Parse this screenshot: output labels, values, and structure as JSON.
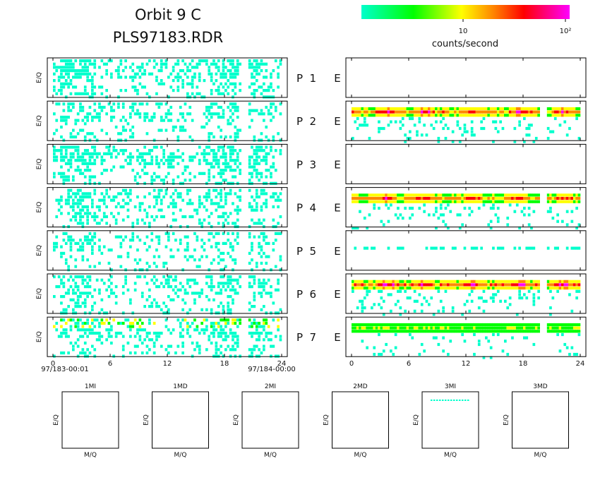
{
  "header": {
    "title_line1": "Orbit  9  C",
    "title_line2": "PLS97183.RDR"
  },
  "colorbar": {
    "label": "counts/second",
    "tick_labels": [
      "10",
      "10²"
    ],
    "tick_values": [
      10,
      100
    ],
    "range": [
      1,
      120
    ],
    "scale": "log",
    "gradient_colors": [
      "#00ffcc",
      "#00ff00",
      "#ffff00",
      "#ff8800",
      "#ff0000",
      "#ff00ff"
    ]
  },
  "chart_data": {
    "type": "heatmap",
    "xlim": [
      0,
      24
    ],
    "x_ticks": [
      0,
      6,
      12,
      18,
      24
    ],
    "x_tick_labels": [
      "0",
      "6",
      "12",
      "18",
      "24"
    ],
    "left_ylabel": "E/Q",
    "start_label": "97/183-00:01",
    "end_label": "97/184-00:00",
    "data_gap": [
      19.6,
      20.3
    ],
    "channels": [
      {
        "p": "P  1",
        "e": "E",
        "left_density": 0.32,
        "right_band": null
      },
      {
        "p": "P  2",
        "e": "E",
        "left_density": 0.22,
        "right_band": {
          "level": 0.75,
          "peaks": [
            3.5,
            7.5,
            12.5,
            17.5,
            22
          ]
        }
      },
      {
        "p": "P  3",
        "e": "E",
        "left_density": 0.32,
        "right_band": null
      },
      {
        "p": "P  4",
        "e": "E",
        "left_density": 0.28,
        "right_band": {
          "level": 0.7,
          "peaks": [
            3.5,
            7.5,
            12.5,
            17.5,
            22
          ]
        }
      },
      {
        "p": "P  5",
        "e": "E",
        "left_density": 0.18,
        "right_band": {
          "level": 0.08,
          "peaks": []
        }
      },
      {
        "p": "P  6",
        "e": "E",
        "left_density": 0.24,
        "right_band": {
          "level": 0.85,
          "peaks": [
            3.5,
            7.5,
            12.5,
            17.5,
            22
          ]
        }
      },
      {
        "p": "P  7",
        "e": "E",
        "left_density": 0.3,
        "right_band": {
          "level": 0.35,
          "peaks": []
        }
      }
    ],
    "small_panels": [
      {
        "label": "1MI",
        "ylabel": "E/Q",
        "xlabel": "M/Q",
        "has_data": false
      },
      {
        "label": "1MD",
        "ylabel": "E/Q",
        "xlabel": "M/Q",
        "has_data": false
      },
      {
        "label": "2MI",
        "ylabel": "E/Q",
        "xlabel": "M/Q",
        "has_data": false
      },
      {
        "label": "2MD",
        "ylabel": "E/Q",
        "xlabel": "M/Q",
        "has_data": false
      },
      {
        "label": "3MI",
        "ylabel": "E/Q",
        "xlabel": "M/Q",
        "has_data": true
      },
      {
        "label": "3MD",
        "ylabel": "E/Q",
        "xlabel": "M/Q",
        "has_data": false
      }
    ]
  }
}
